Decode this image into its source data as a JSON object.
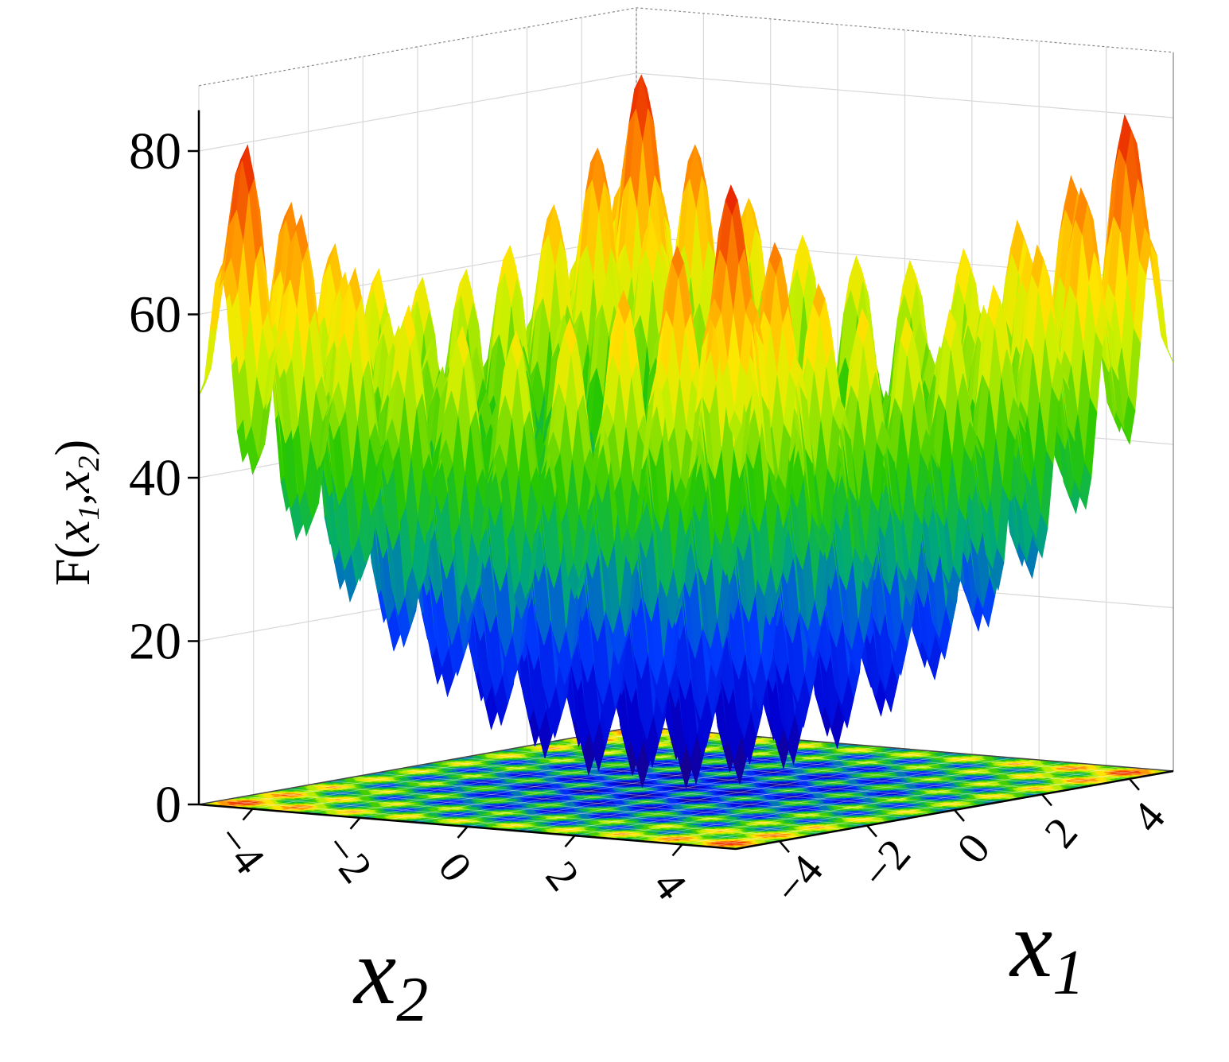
{
  "chart_data": {
    "type": "surface3d",
    "function": "Rastrigin",
    "function_label": "F(x1,x2)",
    "zlabel": {
      "prefix": "F(",
      "var1": "x",
      "sub1": "1",
      "sep": ",",
      "var2": "x",
      "sub2": "2",
      "suffix": ")"
    },
    "x1_label": {
      "var": "x",
      "sub": "1"
    },
    "x2_label": {
      "var": "x",
      "sub": "2"
    },
    "x1_range": [
      -5,
      5
    ],
    "x2_range": [
      -5,
      5
    ],
    "z_range": [
      0,
      85
    ],
    "x1_ticks": [
      "−4",
      "−2",
      "0",
      "2",
      "4"
    ],
    "x1_tick_values": [
      -4,
      -2,
      0,
      2,
      4
    ],
    "x2_ticks": [
      "−4",
      "−2",
      "0",
      "2",
      "4"
    ],
    "x2_tick_values": [
      -4,
      -2,
      0,
      2,
      4
    ],
    "z_ticks": [
      "0",
      "20",
      "40",
      "60",
      "80"
    ],
    "z_tick_values": [
      0,
      20,
      40,
      60,
      80
    ],
    "grid": true,
    "colormap": "jet",
    "projected_contour": true,
    "global_minimum": {
      "x1": 0,
      "x2": 0,
      "z": 0
    }
  }
}
